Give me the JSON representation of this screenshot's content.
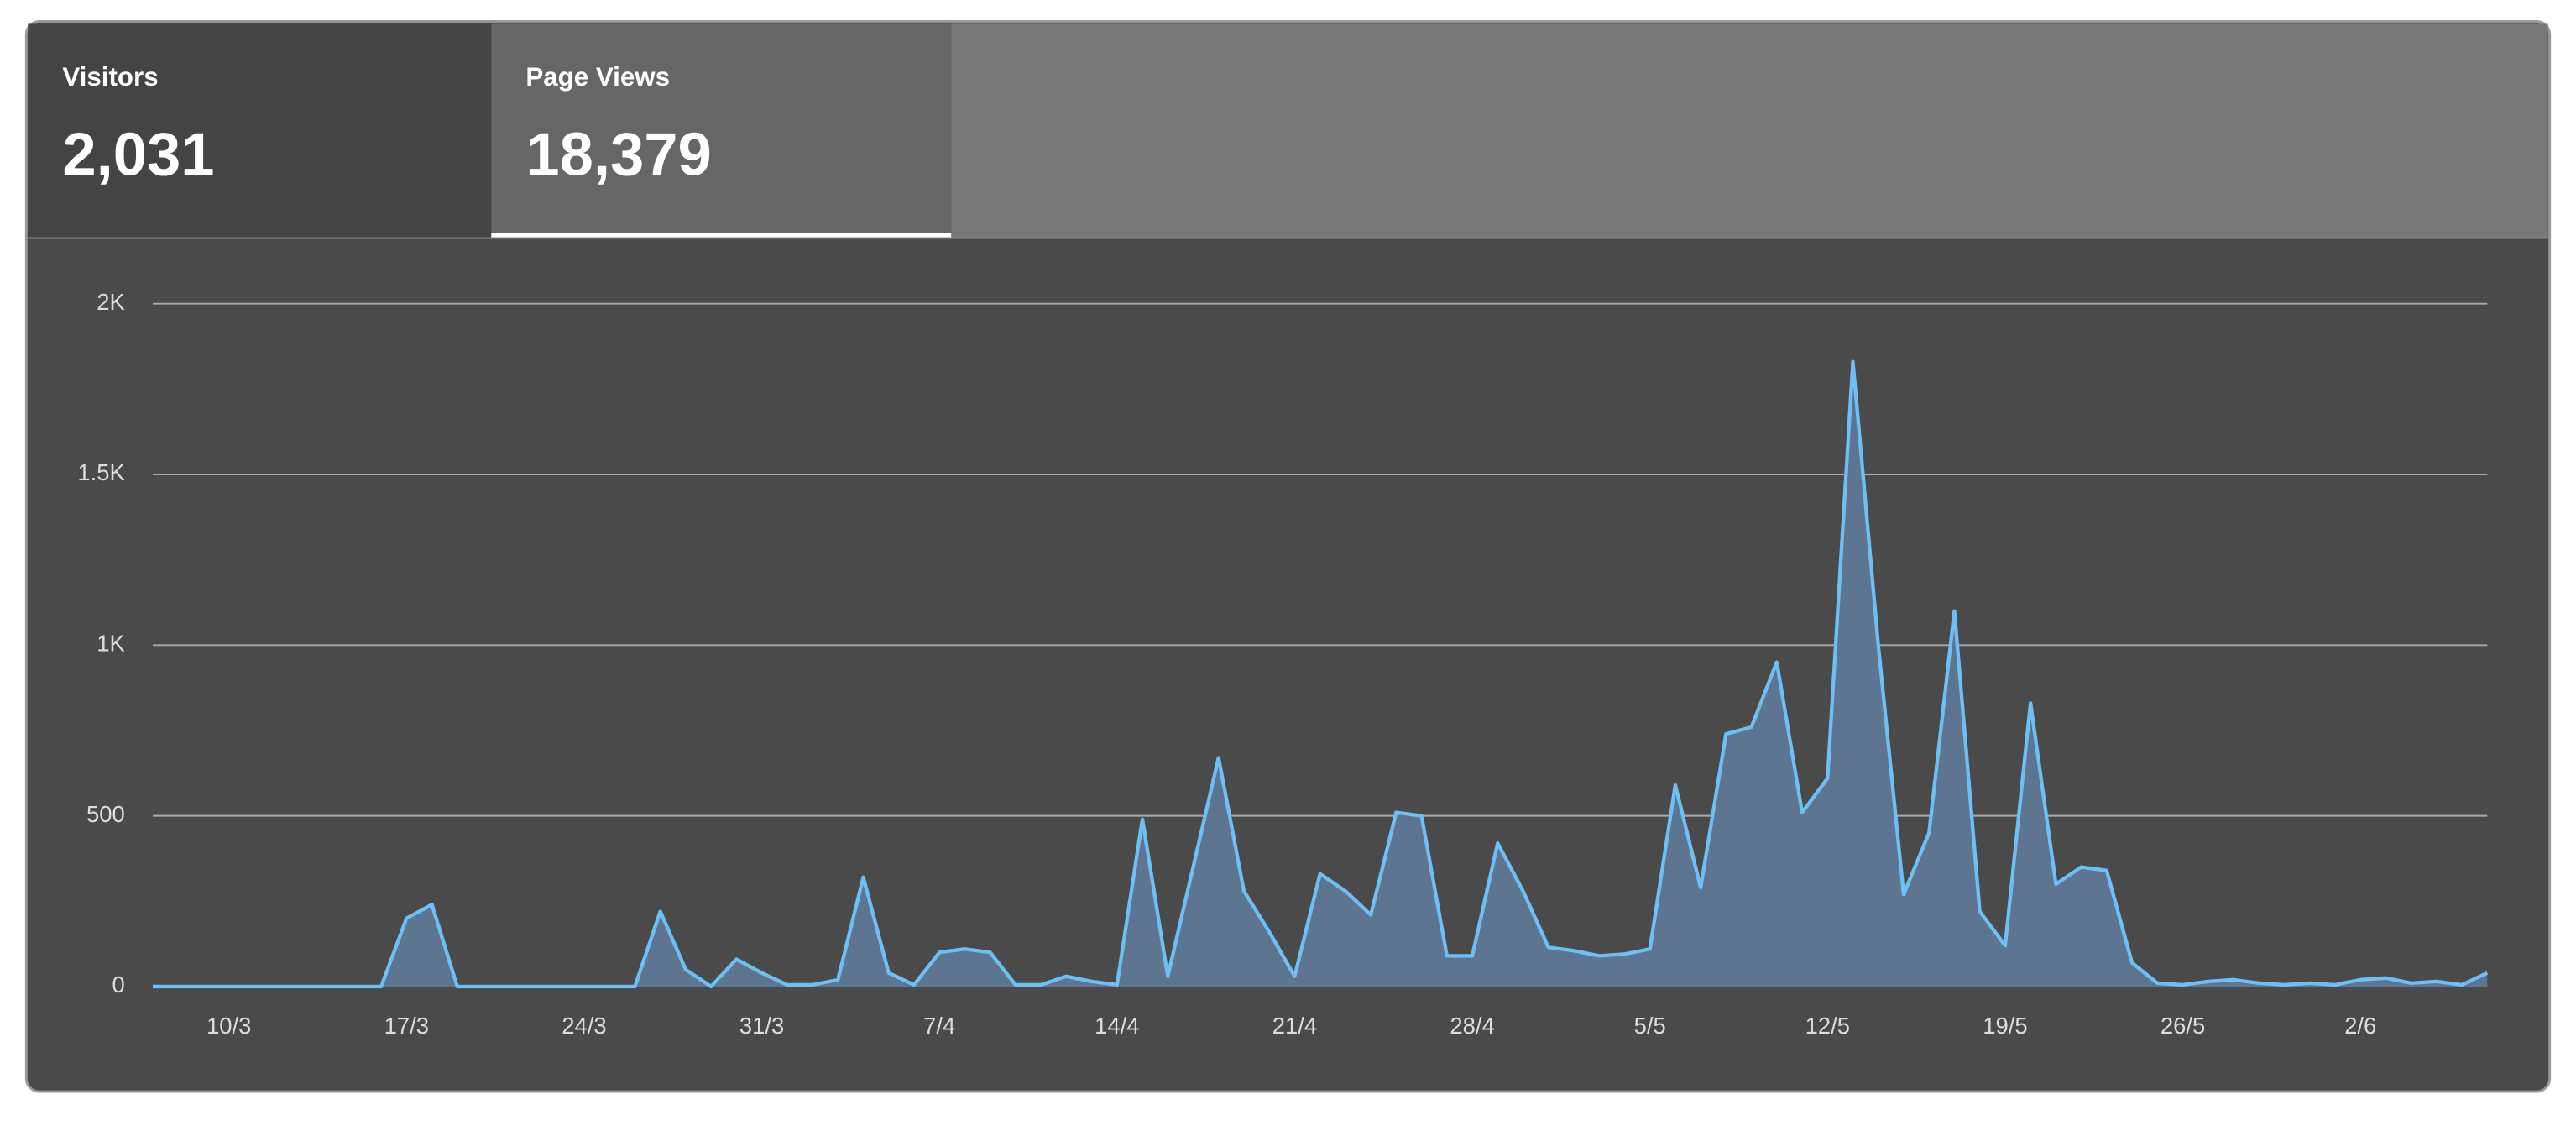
{
  "tabs": [
    {
      "label": "Visitors",
      "value": "2,031"
    },
    {
      "label": "Page Views",
      "value": "18,379"
    }
  ],
  "chart_data": {
    "type": "area",
    "color": "#6cc0f5",
    "fill": "#5d7590",
    "categories": [
      null,
      null,
      null,
      "10/3",
      null,
      null,
      null,
      null,
      null,
      null,
      "17/3",
      null,
      null,
      null,
      null,
      null,
      null,
      "24/3",
      null,
      null,
      null,
      null,
      null,
      null,
      "31/3",
      null,
      null,
      null,
      null,
      null,
      null,
      "7/4",
      null,
      null,
      null,
      null,
      null,
      null,
      "14/4",
      null,
      null,
      null,
      null,
      null,
      null,
      "21/4",
      null,
      null,
      null,
      null,
      null,
      null,
      "28/4",
      null,
      null,
      null,
      null,
      null,
      null,
      "5/5",
      null,
      null,
      null,
      null,
      null,
      null,
      "12/5",
      null,
      null,
      null,
      null,
      null,
      null,
      "19/5",
      null,
      null,
      null,
      null,
      null,
      null,
      "26/5",
      null,
      null,
      null,
      null,
      null,
      null,
      "2/6",
      null,
      null,
      null,
      null,
      null
    ],
    "values": [
      0,
      0,
      0,
      0,
      0,
      0,
      0,
      0,
      0,
      0,
      200,
      240,
      0,
      0,
      0,
      0,
      0,
      0,
      0,
      0,
      220,
      50,
      0,
      80,
      40,
      5,
      5,
      20,
      320,
      40,
      5,
      100,
      110,
      100,
      5,
      5,
      30,
      15,
      5,
      490,
      30,
      350,
      670,
      280,
      160,
      30,
      330,
      280,
      210,
      510,
      500,
      90,
      90,
      420,
      280,
      115,
      105,
      90,
      95,
      110,
      590,
      290,
      740,
      760,
      950,
      510,
      610,
      1830,
      1000,
      270,
      450,
      1100,
      220,
      120,
      830,
      300,
      350,
      340,
      70,
      10,
      5,
      15,
      20,
      10,
      5,
      10,
      5,
      20,
      25,
      10,
      15,
      5,
      40
    ],
    "ylim": [
      0,
      2000
    ],
    "yticks": [
      0,
      500,
      {
        "value": 1000,
        "label": "1K"
      },
      {
        "value": 1500,
        "label": "1.5K"
      },
      {
        "value": 2000,
        "label": "2K"
      }
    ],
    "grid": true
  }
}
